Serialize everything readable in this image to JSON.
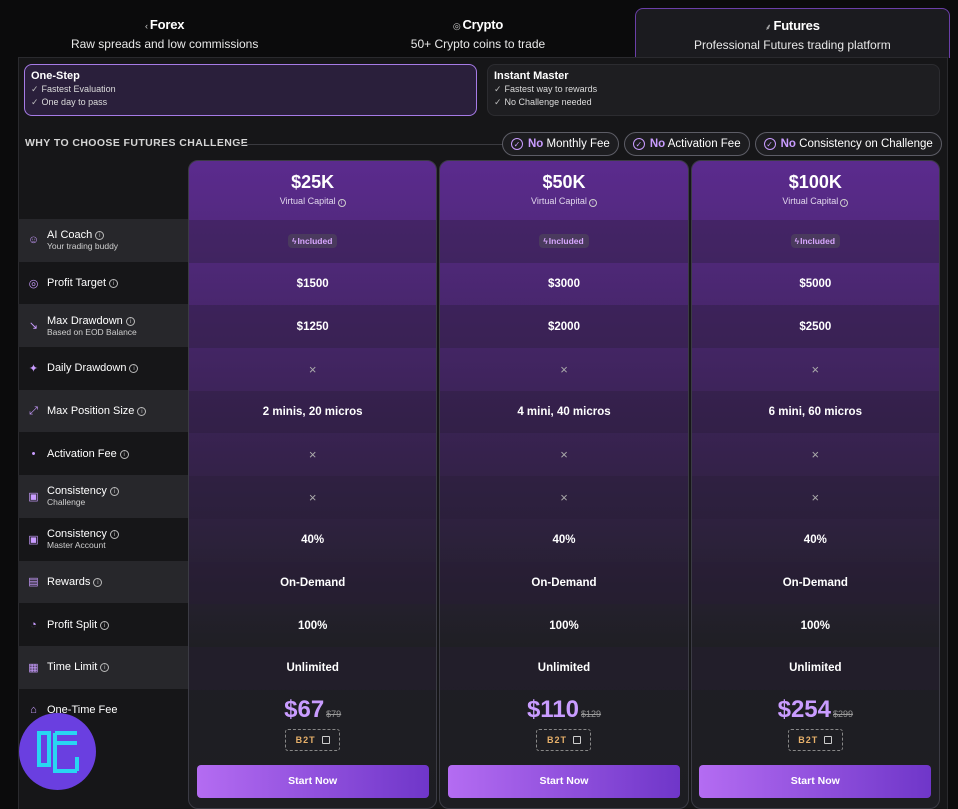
{
  "tabs": [
    {
      "icon": "chart-icon",
      "symbol": "‹",
      "title": "Forex",
      "subtitle": "Raw spreads and low commissions"
    },
    {
      "icon": "coin-icon",
      "symbol": "◎",
      "title": "Crypto",
      "subtitle": "50+ Crypto coins to trade"
    },
    {
      "icon": "futures-icon",
      "symbol": "⸙",
      "title": "Futures",
      "subtitle": "Professional Futures trading platform",
      "active": true
    }
  ],
  "modes": [
    {
      "title": "One-Step",
      "items": [
        "Fastest Evaluation",
        "One day to pass"
      ],
      "active": true
    },
    {
      "title": "Instant Master",
      "items": [
        "Fastest way to rewards",
        "No Challenge needed"
      ]
    }
  ],
  "why_title": "WHY TO CHOOSE FUTURES CHALLENGE",
  "badges": [
    {
      "hl": "No",
      "text": "Monthly Fee"
    },
    {
      "hl": "No",
      "text": "Activation Fee"
    },
    {
      "hl": "No",
      "text": "Consistency on Challenge"
    }
  ],
  "rows": [
    {
      "label": "AI Coach",
      "sub": "Your trading buddy",
      "icon": "robot-icon"
    },
    {
      "label": "Profit Target",
      "sub": "",
      "icon": "target-icon"
    },
    {
      "label": "Max Drawdown",
      "sub": "Based on EOD Balance",
      "icon": "trend-down-icon"
    },
    {
      "label": "Daily Drawdown",
      "sub": "",
      "icon": "sparkle-icon"
    },
    {
      "label": "Max Position Size",
      "sub": "",
      "icon": "expand-icon"
    },
    {
      "label": "Activation Fee",
      "sub": "",
      "icon": "dot-icon"
    },
    {
      "label": "Consistency",
      "sub": "Challenge",
      "icon": "calendar-clock-icon"
    },
    {
      "label": "Consistency",
      "sub": "Master Account",
      "icon": "calendar-clock-icon"
    },
    {
      "label": "Rewards",
      "sub": "",
      "icon": "gift-icon"
    },
    {
      "label": "Profit Split",
      "sub": "",
      "icon": "pie-icon"
    },
    {
      "label": "Time Limit",
      "sub": "",
      "icon": "calendar-icon"
    },
    {
      "label": "One-Time Fee",
      "sub": "",
      "icon": "tag-icon"
    }
  ],
  "plans": [
    {
      "amount": "$25K",
      "capital": "Virtual Capital",
      "values": [
        "Included",
        "$1500",
        "$1250",
        "×",
        "2 minis, 20 micros",
        "×",
        "×",
        "40%",
        "On-Demand",
        "100%",
        "Unlimited"
      ],
      "price": "$67",
      "old": "$79",
      "code": "B2T",
      "cta": "Start Now"
    },
    {
      "amount": "$50K",
      "capital": "Virtual Capital",
      "values": [
        "Included",
        "$3000",
        "$2000",
        "×",
        "4 mini, 40 micros",
        "×",
        "×",
        "40%",
        "On-Demand",
        "100%",
        "Unlimited"
      ],
      "price": "$110",
      "old": "$129",
      "code": "B2T",
      "cta": "Start Now"
    },
    {
      "amount": "$100K",
      "capital": "Virtual Capital",
      "values": [
        "Included",
        "$5000",
        "$2500",
        "×",
        "6 mini, 60 micros",
        "×",
        "×",
        "40%",
        "On-Demand",
        "100%",
        "Unlimited"
      ],
      "price": "$254",
      "old": "$299",
      "code": "B2T",
      "cta": "Start Now"
    }
  ],
  "colors": {
    "accent": "#c99cff",
    "cta_start": "#b46cf2",
    "cta_end": "#6f36c9",
    "code": "#e7b06a"
  }
}
